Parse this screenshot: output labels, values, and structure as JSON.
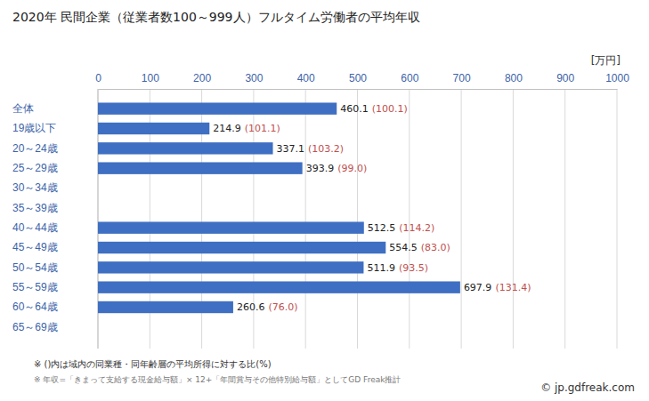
{
  "chart_data": {
    "type": "bar",
    "orientation": "horizontal",
    "title": "2020年 民間企業（従業者数100～999人）フルタイム労働者の平均年収",
    "x_label": "[万円]",
    "categories": [
      "全体",
      "19歳以下",
      "20～24歳",
      "25～29歳",
      "30～34歳",
      "35～39歳",
      "40～44歳",
      "45～49歳",
      "50～54歳",
      "55～59歳",
      "60～64歳",
      "65～69歳"
    ],
    "values": [
      460.1,
      214.9,
      337.1,
      393.9,
      null,
      null,
      512.5,
      554.5,
      511.9,
      697.9,
      260.6,
      null
    ],
    "ratio_labels": [
      "(100.1)",
      "(101.1)",
      "(103.2)",
      "(99.0)",
      null,
      null,
      "(114.2)",
      "(83.0)",
      "(93.5)",
      "(131.4)",
      "(76.0)",
      null
    ],
    "color": "#3f6fc2",
    "xlim": [
      0,
      1000
    ],
    "xticks": [
      0,
      100,
      200,
      300,
      400,
      500,
      600,
      700,
      800,
      900,
      1000
    ],
    "grid": true,
    "data_labels": true,
    "notes": [
      "※ ()内は域内の同業種・同年齢層の平均所得に対する比(%)",
      "※ 年収=「きまって支給する現金給与額」× 12+「年間賞与その他特別給与額」としてGD Freak推計"
    ],
    "credit": "© jp.gdfreak.com"
  }
}
